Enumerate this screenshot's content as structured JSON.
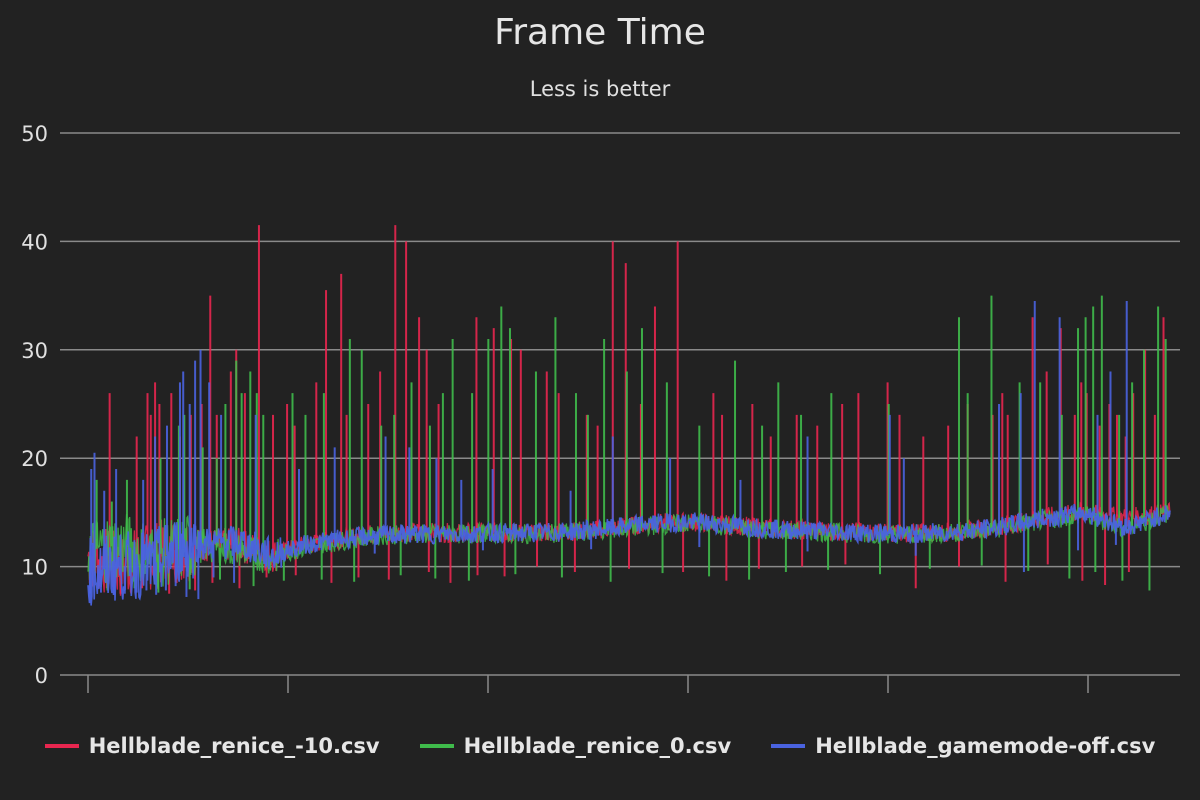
{
  "chart_data": {
    "type": "line",
    "title": "Frame Time",
    "subtitle": "Less is better",
    "xlabel": "",
    "ylabel": "",
    "ylim": [
      0,
      50
    ],
    "yticks": [
      0,
      10,
      20,
      30,
      40,
      50
    ],
    "x_ticks_count": 6,
    "grid": true,
    "legend_position": "bottom",
    "series": [
      {
        "name": "Hellblade_renice_-10.csv",
        "color": "#e8264f",
        "baseline_x": [
          0,
          3,
          6,
          10,
          14,
          17,
          20,
          23,
          26,
          30,
          34,
          37,
          40,
          44,
          48,
          52,
          56,
          60,
          64,
          68,
          72,
          76,
          80,
          84,
          88,
          92,
          96,
          100
        ],
        "baseline_y": [
          11,
          10,
          11,
          12,
          12,
          11,
          12,
          12.5,
          13,
          13.2,
          13.1,
          13.2,
          13.1,
          13.2,
          13.5,
          14,
          14.1,
          13.8,
          13.5,
          13.3,
          13.2,
          13.1,
          13.2,
          13.7,
          14.5,
          15,
          14.5,
          15
        ],
        "spikes_x": [
          2,
          4.5,
          5.5,
          5.8,
          6.2,
          6.6,
          7.7,
          8.5,
          9.5,
          10.5,
          11.3,
          11.9,
          13.2,
          13.7,
          14.5,
          15.8,
          17.1,
          18.4,
          19.1,
          21.1,
          22,
          23.4,
          23.9,
          25.9,
          27,
          28.4,
          29.4,
          30.6,
          31.3,
          32.4,
          35.9,
          37.5,
          39.1,
          40,
          42.4,
          43.5,
          46.1,
          47.1,
          48.5,
          49.7,
          51.1,
          52.4,
          54.5,
          57.8,
          58.6,
          61.4,
          63.1,
          65.5,
          67.4,
          69.7,
          71.2,
          73.9,
          75,
          77.2,
          79.5,
          81.3,
          83.6,
          84.5,
          85,
          87.3,
          88.6,
          89.9,
          91.2,
          91.8,
          92.3,
          93.5,
          94.4,
          95.1,
          95.9,
          96.6,
          97.7,
          98.6,
          99.4
        ],
        "spikes_y": [
          26,
          22,
          26,
          24,
          27,
          25,
          26,
          22,
          24,
          25,
          35,
          24,
          28,
          30,
          26,
          41.5,
          24,
          25,
          23,
          27,
          35.5,
          37,
          24,
          25,
          28,
          41.5,
          40,
          33,
          30,
          25,
          33,
          32,
          31,
          30,
          28,
          26,
          24,
          23,
          40,
          38,
          25,
          34,
          40,
          26,
          24,
          25,
          22,
          24,
          23,
          25,
          26,
          27,
          24,
          22,
          23,
          25,
          24,
          26,
          24,
          33,
          28,
          32,
          24,
          27,
          26,
          23,
          25,
          24,
          22,
          26,
          30,
          24,
          33
        ],
        "dips_x": [
          1,
          3,
          5,
          7.5,
          9.9,
          11.5,
          14,
          16.5,
          19.2,
          22.5,
          25,
          27.8,
          31.5,
          33.5,
          36,
          38.5,
          41.5,
          45,
          50,
          55,
          59,
          62,
          66,
          70,
          76.5,
          80.5,
          84.8,
          88.7,
          91.9,
          94,
          96.2
        ],
        "dips_y": [
          8,
          7.5,
          8,
          7.5,
          7.8,
          8.5,
          8,
          9,
          9.2,
          8.5,
          9,
          8.8,
          9.5,
          8.5,
          9.2,
          9.1,
          10,
          9.5,
          9.8,
          9.5,
          8.7,
          9.8,
          10,
          10.2,
          8,
          10,
          8.6,
          10.2,
          8.7,
          8.3,
          9.5
        ]
      },
      {
        "name": "Hellblade_renice_0.csv",
        "color": "#3fbb4b",
        "baseline_x": [
          0,
          3,
          6,
          10,
          14,
          17,
          20,
          23,
          26,
          30,
          34,
          37,
          40,
          44,
          48,
          52,
          56,
          60,
          64,
          68,
          72,
          76,
          80,
          84,
          88,
          92,
          96,
          100
        ],
        "baseline_y": [
          11.5,
          12,
          11,
          12,
          11.5,
          10.8,
          11.8,
          12.3,
          12.8,
          13,
          13,
          13.1,
          13,
          13.1,
          13.4,
          13.8,
          14,
          13.6,
          13.3,
          13.2,
          13,
          13,
          13.1,
          13.5,
          14.2,
          14.8,
          13.5,
          15
        ],
        "spikes_x": [
          0.8,
          2.2,
          3.6,
          6.7,
          8.4,
          8.9,
          10.6,
          11.9,
          12.7,
          13.7,
          14.2,
          15,
          15.6,
          16.2,
          18.9,
          20.1,
          21.8,
          24.2,
          25.3,
          27.1,
          28.3,
          29.9,
          31.6,
          32.8,
          33.7,
          35.5,
          37,
          38.2,
          39,
          41.4,
          43.2,
          45.1,
          46.2,
          47.7,
          49.8,
          51.2,
          53.5,
          56.5,
          59.8,
          62.3,
          63.8,
          65.9,
          68.7,
          74,
          80.5,
          81.3,
          83.5,
          86.1,
          88,
          90,
          91.5,
          92.2,
          92.9,
          93.7,
          95.3,
          96.5,
          97.6,
          98.9,
          99.6
        ],
        "spikes_x_note": "",
        "spikes_y": [
          18,
          16,
          18,
          20,
          23,
          24,
          21,
          20,
          25,
          29,
          26,
          28,
          26,
          24,
          26,
          24,
          26,
          31,
          30,
          23,
          24,
          27,
          23,
          26,
          31,
          26,
          31,
          34,
          32,
          28,
          33,
          26,
          24,
          31,
          28,
          32,
          27,
          23,
          29,
          23,
          27,
          24,
          26,
          25,
          33,
          26,
          35,
          27,
          27,
          24,
          32,
          33,
          34,
          35,
          24,
          27,
          30,
          34,
          31
        ],
        "dips_x": [
          1.8,
          4.3,
          6.5,
          9.4,
          12.2,
          15.3,
          18.1,
          21.6,
          24.6,
          28.9,
          32.1,
          35.2,
          39.5,
          43.8,
          48.3,
          53.1,
          57.4,
          61.1,
          64.5,
          68.4,
          73.2,
          77.8,
          82.6,
          86.9,
          90.7,
          93.1,
          95.6,
          98.1
        ],
        "dips_y": [
          7.8,
          8,
          7.6,
          7.9,
          8.8,
          8.2,
          8.7,
          8.8,
          8.6,
          9.2,
          8.9,
          8.7,
          9.3,
          9,
          8.6,
          9.4,
          9.1,
          8.8,
          9.5,
          9.7,
          9.3,
          9.8,
          10.1,
          9.6,
          8.9,
          9.5,
          8.7,
          7.8
        ]
      },
      {
        "name": "Hellblade_gamemode-off.csv",
        "color": "#4a63e0",
        "baseline_x": [
          0,
          3,
          6,
          8,
          10,
          14,
          17,
          20,
          23,
          26,
          30,
          34,
          37,
          40,
          44,
          48,
          52,
          56,
          60,
          64,
          68,
          72,
          76,
          80,
          84,
          88,
          92,
          96,
          100
        ],
        "baseline_y": [
          9.5,
          10,
          10.2,
          11.5,
          12,
          12.3,
          11,
          12,
          12.5,
          12.8,
          13,
          13,
          13.1,
          13.1,
          13.2,
          13.5,
          14,
          14.1,
          13.8,
          13.4,
          13.3,
          13.1,
          13,
          13.2,
          13.6,
          14.4,
          15,
          13.6,
          15
        ],
        "spikes_x": [
          0.3,
          0.6,
          1.5,
          2.6,
          5.1,
          6.2,
          7.3,
          8.5,
          8.8,
          9.4,
          9.9,
          10.4,
          11.2,
          12.3,
          15.5,
          19.5,
          22.8,
          27.5,
          29.7,
          32.2,
          34.5,
          37.4,
          44.6,
          48.5,
          53.8,
          60.3,
          66.5,
          74.1,
          75.4,
          84.2,
          86.2,
          87.5,
          89.8,
          93.3,
          94.5,
          96
        ],
        "spikes_y": [
          19,
          20.5,
          17,
          19,
          18,
          22,
          23,
          27,
          28,
          25,
          29,
          30,
          27,
          24,
          24,
          19,
          21,
          22,
          21,
          20,
          18,
          19,
          17,
          22,
          20,
          18,
          22,
          24,
          20,
          25,
          26,
          34.5,
          33,
          24,
          28,
          34.5
        ],
        "dips_x": [
          0.2,
          1.2,
          2.4,
          3.4,
          4.5,
          5.4,
          6.3,
          7.2,
          8.1,
          9.1,
          10.2,
          11.6,
          13.5,
          17.5,
          26.5,
          36.5,
          46.5,
          56.5,
          66.5,
          76.5,
          86.5,
          91.5,
          95
        ],
        "dips_y": [
          7.5,
          7.6,
          7.4,
          7.5,
          7.6,
          7.8,
          7.4,
          7.8,
          8.2,
          7.2,
          7,
          9,
          8.5,
          10.5,
          11.2,
          11.5,
          11.6,
          11.8,
          11.4,
          11,
          9.5,
          11.5,
          12
        ]
      }
    ]
  }
}
